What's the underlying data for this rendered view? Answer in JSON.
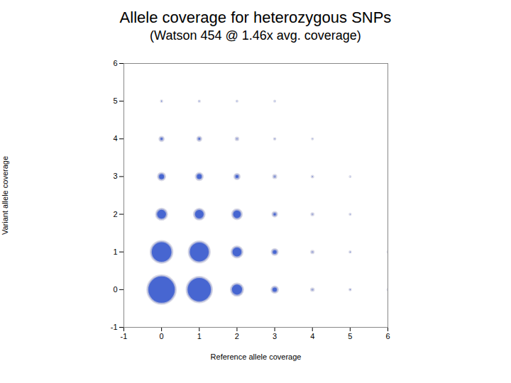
{
  "chart_data": {
    "type": "scatter",
    "title": "Allele coverage for heterozygous SNPs",
    "subtitle": "(Watson 454 @ 1.46x avg. coverage)",
    "xlabel": "Reference allele coverage",
    "ylabel": "Variant allele coverage",
    "xlim": [
      -1,
      6
    ],
    "ylim": [
      -1,
      6
    ],
    "xticks": [
      -1,
      0,
      1,
      2,
      3,
      4,
      5,
      6
    ],
    "yticks": [
      -1,
      0,
      1,
      2,
      3,
      4,
      5,
      6
    ],
    "grid": false,
    "color": "#3355cc",
    "x": [
      0,
      1,
      0,
      1,
      2,
      2,
      0,
      1,
      2,
      3,
      3,
      3,
      0,
      1,
      2,
      3,
      4,
      4,
      4,
      4,
      5,
      5,
      5,
      5,
      6,
      6,
      0,
      1,
      2,
      3,
      4,
      0,
      1,
      2,
      3
    ],
    "values": [
      0,
      0,
      1,
      1,
      0,
      1,
      2,
      2,
      2,
      0,
      1,
      2,
      3,
      3,
      3,
      3,
      0,
      1,
      2,
      3,
      0,
      1,
      2,
      3,
      0,
      1,
      4,
      4,
      4,
      4,
      4,
      5,
      5,
      5,
      5
    ],
    "sizes": [
      12000,
      9500,
      7000,
      6500,
      2200,
      1800,
      1800,
      1700,
      1400,
      600,
      500,
      300,
      750,
      700,
      400,
      130,
      90,
      75,
      55,
      30,
      22,
      18,
      14,
      9,
      10,
      8,
      250,
      220,
      90,
      22,
      12,
      18,
      14,
      11,
      9
    ]
  }
}
